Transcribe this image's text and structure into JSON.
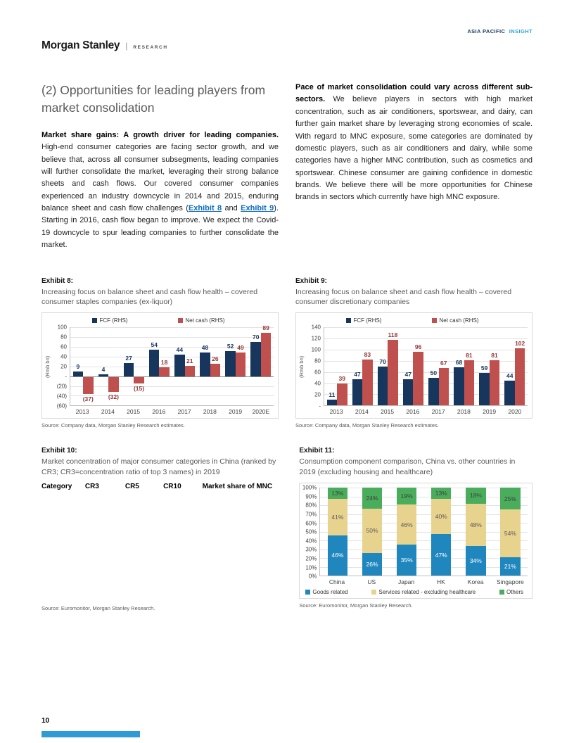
{
  "header": {
    "brand": "Morgan Stanley",
    "divider": "|",
    "brand_sub": "RESEARCH",
    "region_tag": "ASIA PACIFIC",
    "insight_tag": "INSIGHT"
  },
  "article": {
    "title": "(2) Opportunities for leading players from market consolidation",
    "left_column": {
      "lead": "Market share gains: A growth driver for leading companies.",
      "body_1": " High-end consumer categories are facing sector growth, and we believe that, across all consumer subsegments, leading companies will further consolidate the market, leveraging their strong balance sheets and cash flows. Our covered consumer companies experienced an industry downcycle in 2014 and 2015, enduring balance sheet and cash flow challenges (",
      "link_exhibit8": "Exhibit 8",
      "body_2": " and ",
      "link_exhibit9": "Exhibit 9",
      "body_3": "). Starting in 2016, cash flow began to improve. We expect the Covid-19 downcycle to spur leading companies to further consolidate the market."
    },
    "right_column": {
      "lead": "Pace of market consolidation could vary across different sub-sectors.",
      "body": " We believe players in sectors with high market concentration, such as air conditioners, sportswear, and dairy, can further gain market share by leveraging strong economies of scale. With regard to MNC exposure, some categories are dominated by domestic players, such as air conditioners and dairy, while some categories have a higher MNC contribution, such as cosmetics and sportswear. Chinese consumer are gaining confidence in domestic brands. We believe there will be more opportunities for Chinese brands in sectors which currently have high MNC exposure."
    }
  },
  "exhibits": {
    "ex8": {
      "label": "Exhibit 8:",
      "title": "Increasing focus on balance sheet and cash flow health – covered consumer staples companies (ex-liquor)",
      "source": "Source: Company data, Morgan Stanley Research estimates."
    },
    "ex9": {
      "label": "Exhibit 9:",
      "title": "Increasing focus on balance sheet and cash flow health – covered consumer discretionary companies",
      "source": "Source: Company data, Morgan Stanley Research estimates."
    },
    "ex10": {
      "label": "Exhibit 10:",
      "title": "Market concentration of major consumer categories in China (ranked by CR3; CR3=concentration ratio of top 3 names) in 2019",
      "source": "Source: Euromonitor, Morgan Stanley Research.",
      "table": {
        "headers": [
          "Category",
          "CR3",
          "CR5",
          "CR10",
          "Market share of MNC"
        ],
        "rows": []
      }
    },
    "ex11": {
      "label": "Exhibit 11:",
      "title": "Consumption component comparison, China vs. other countries in 2019 (excluding housing and healthcare)",
      "source": "Source: Euromonitor, Morgan Stanley Research."
    }
  },
  "chart_data": [
    {
      "id": "ex8",
      "type": "bar",
      "title": "Increasing focus on balance sheet and cash flow health – covered consumer staples companies (ex-liquor)",
      "categories": [
        "2013",
        "2014",
        "2015",
        "2016",
        "2017",
        "2018",
        "2019",
        "2020E"
      ],
      "series": [
        {
          "name": "FCF (RHS)",
          "color": "#17365D",
          "label_color": "#17365D",
          "values": [
            9,
            4,
            27,
            54,
            44,
            48,
            52,
            70
          ]
        },
        {
          "name": "Net cash (RHS)",
          "color": "#C0504D",
          "label_color": "#943634",
          "values": [
            -37,
            -32,
            -15,
            18,
            21,
            26,
            49,
            89
          ]
        }
      ],
      "xlabel": "",
      "ylabel": "(Rmb bn)",
      "ylim": [
        -60,
        100
      ],
      "yticks": [
        {
          "v": 100,
          "label": "100"
        },
        {
          "v": 80,
          "label": "80"
        },
        {
          "v": 60,
          "label": "60"
        },
        {
          "v": 40,
          "label": "40"
        },
        {
          "v": 20,
          "label": "20"
        },
        {
          "v": 0,
          "label": "-"
        },
        {
          "v": -20,
          "label": "(20)"
        },
        {
          "v": -40,
          "label": "(40)"
        },
        {
          "v": -60,
          "label": "(60)"
        }
      ],
      "grid": true,
      "legend_position": "top"
    },
    {
      "id": "ex9",
      "type": "bar",
      "title": "Increasing focus on balance sheet and cash flow health – covered consumer discretionary companies",
      "categories": [
        "2013",
        "2014",
        "2015",
        "2016",
        "2017",
        "2018",
        "2019",
        "2020"
      ],
      "series": [
        {
          "name": "FCF (RHS)",
          "color": "#17365D",
          "label_color": "#17365D",
          "values": [
            11,
            47,
            70,
            47,
            50,
            68,
            59,
            44
          ]
        },
        {
          "name": "Net cash (RHS)",
          "color": "#C0504D",
          "label_color": "#943634",
          "values": [
            39,
            83,
            118,
            96,
            67,
            81,
            81,
            102
          ]
        }
      ],
      "xlabel": "",
      "ylabel": "(Rmb bn)",
      "ylim": [
        0,
        140
      ],
      "yticks": [
        {
          "v": 140,
          "label": "140"
        },
        {
          "v": 120,
          "label": "120"
        },
        {
          "v": 100,
          "label": "100"
        },
        {
          "v": 80,
          "label": "80"
        },
        {
          "v": 60,
          "label": "60"
        },
        {
          "v": 40,
          "label": "40"
        },
        {
          "v": 20,
          "label": "20"
        },
        {
          "v": 0,
          "label": "-"
        }
      ],
      "grid": true,
      "legend_position": "top"
    },
    {
      "id": "ex11",
      "type": "stacked-bar",
      "title": "Consumption component comparison, China vs. other countries in 2019 (excluding housing and healthcare)",
      "categories": [
        "China",
        "US",
        "Japan",
        "HK",
        "Korea",
        "Singapore"
      ],
      "series": [
        {
          "name": "Goods related",
          "color": "#1F87BE",
          "label_color": "#FFFFFF",
          "values": [
            46,
            26,
            35,
            47,
            34,
            21
          ]
        },
        {
          "name": "Services related - excluding healthcare",
          "color": "#E8D38E",
          "label_color": "#595959",
          "values": [
            41,
            50,
            46,
            40,
            48,
            54
          ]
        },
        {
          "name": "Others",
          "color": "#4AAD5B",
          "label_color": "#3F3F3F",
          "values": [
            13,
            24,
            19,
            13,
            18,
            25
          ]
        }
      ],
      "unit": "%",
      "xlabel": "",
      "ylabel": "",
      "ylim": [
        0,
        100
      ],
      "yticks": [
        {
          "v": 100,
          "label": "100%"
        },
        {
          "v": 90,
          "label": "90%"
        },
        {
          "v": 80,
          "label": "80%"
        },
        {
          "v": 70,
          "label": "70%"
        },
        {
          "v": 60,
          "label": "60%"
        },
        {
          "v": 50,
          "label": "50%"
        },
        {
          "v": 40,
          "label": "40%"
        },
        {
          "v": 30,
          "label": "30%"
        },
        {
          "v": 20,
          "label": "20%"
        },
        {
          "v": 10,
          "label": "10%"
        },
        {
          "v": 0,
          "label": "0%"
        }
      ],
      "grid": true,
      "legend_position": "bottom"
    }
  ],
  "footer": {
    "page_number": "10"
  },
  "colors": {
    "fcf_navy": "#17365D",
    "net_cash_red": "#C0504D",
    "goods_blue": "#1F87BE",
    "services_tan": "#E8D38E",
    "others_green": "#4AAD5B",
    "footer_bar_blue": "#2E9BD5",
    "brand_navy": "#17365D",
    "brand_cyan": "#29A3DC",
    "link_blue": "#0F6CBD"
  }
}
